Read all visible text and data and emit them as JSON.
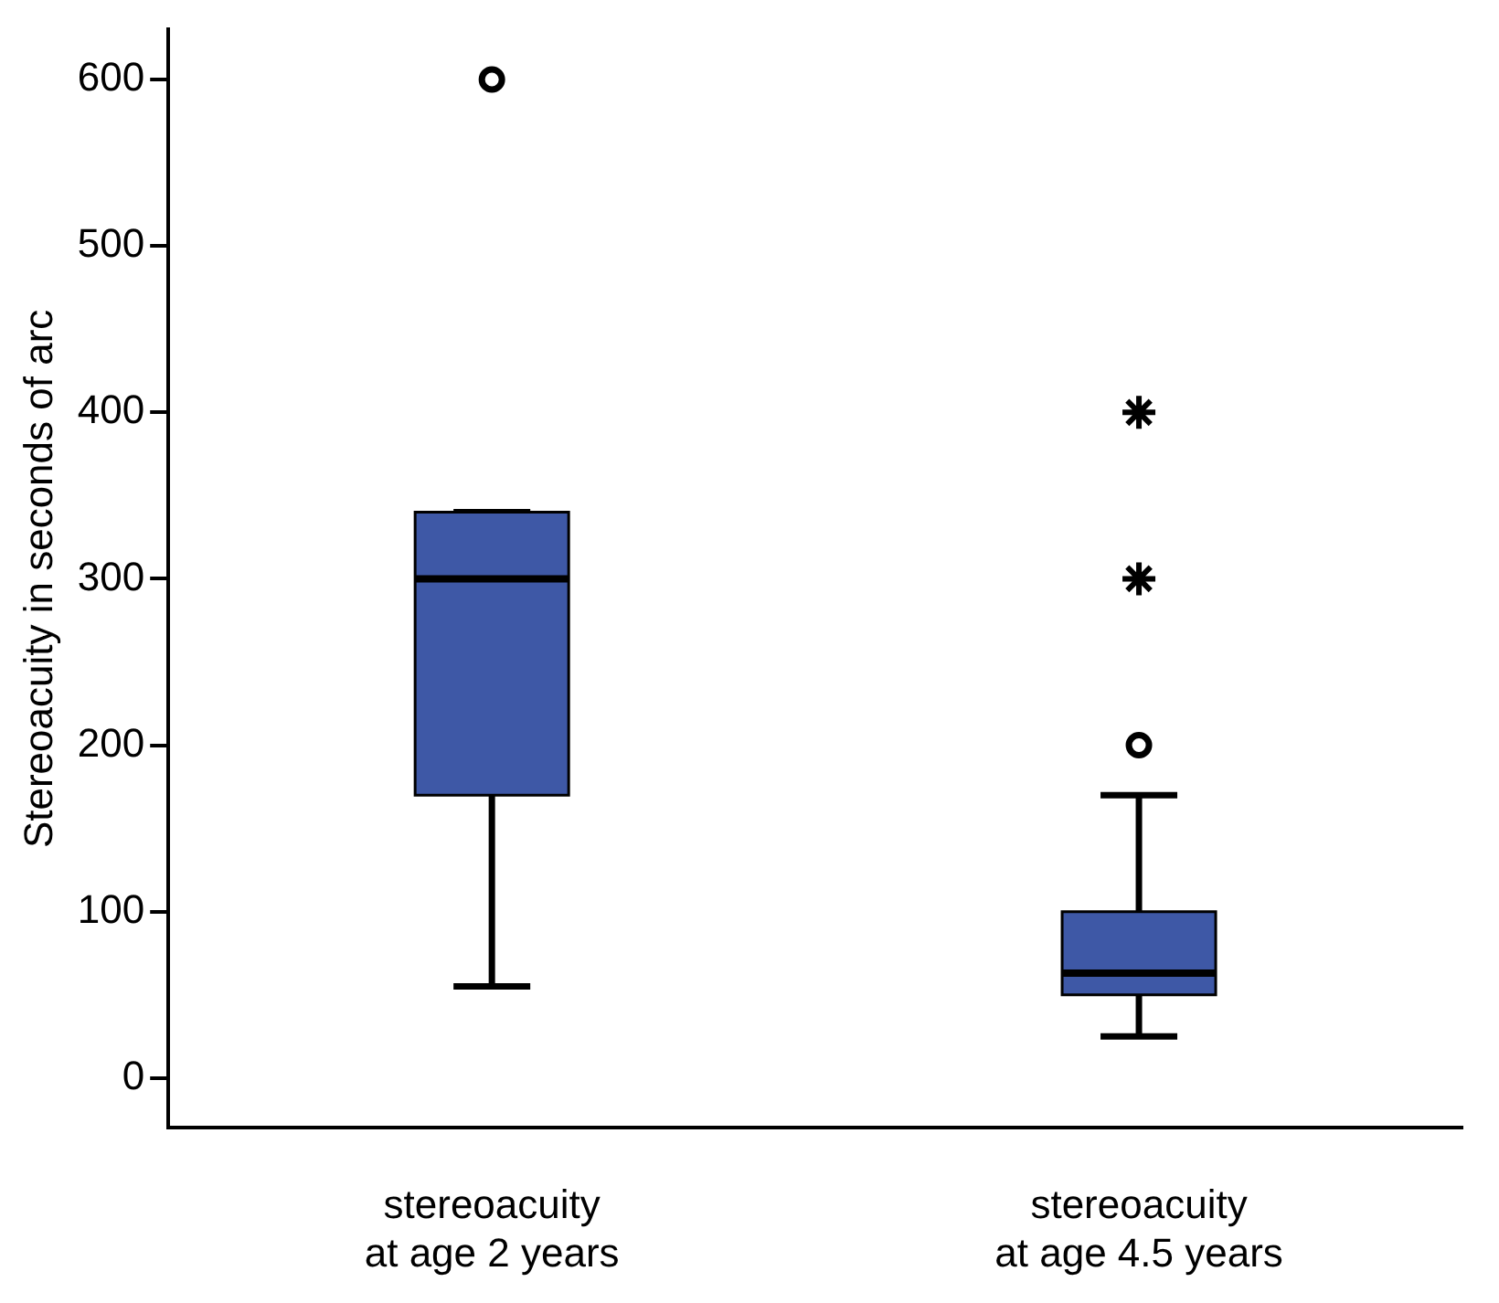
{
  "chart_data": {
    "type": "box",
    "ylabel": "Stereoacuity in seconds of arc",
    "categories": [
      "stereoacuity\nat age 2 years",
      "stereoacuity\nat age 4.5 years"
    ],
    "boxes": [
      {
        "low": 55,
        "q1": 170,
        "median": 300,
        "q3": 340,
        "high": 340,
        "outliers": [
          600
        ]
      },
      {
        "low": 25,
        "q1": 50,
        "median": 63,
        "q3": 100,
        "high": 170,
        "outliers": [
          200
        ]
      }
    ],
    "color": "#3e58a6",
    "series": [
      {
        "type": "scatter",
        "marker": "cross",
        "color": "#000000",
        "x": [
          "stereoacuity\nat age 4.5 years",
          "stereoacuity\nat age 4.5 years"
        ],
        "values": [
          300,
          400
        ]
      }
    ],
    "ylim": [
      -30,
      630
    ],
    "yticks": [
      0,
      100,
      200,
      300,
      400,
      500,
      600
    ],
    "grid": false,
    "legend": false
  }
}
